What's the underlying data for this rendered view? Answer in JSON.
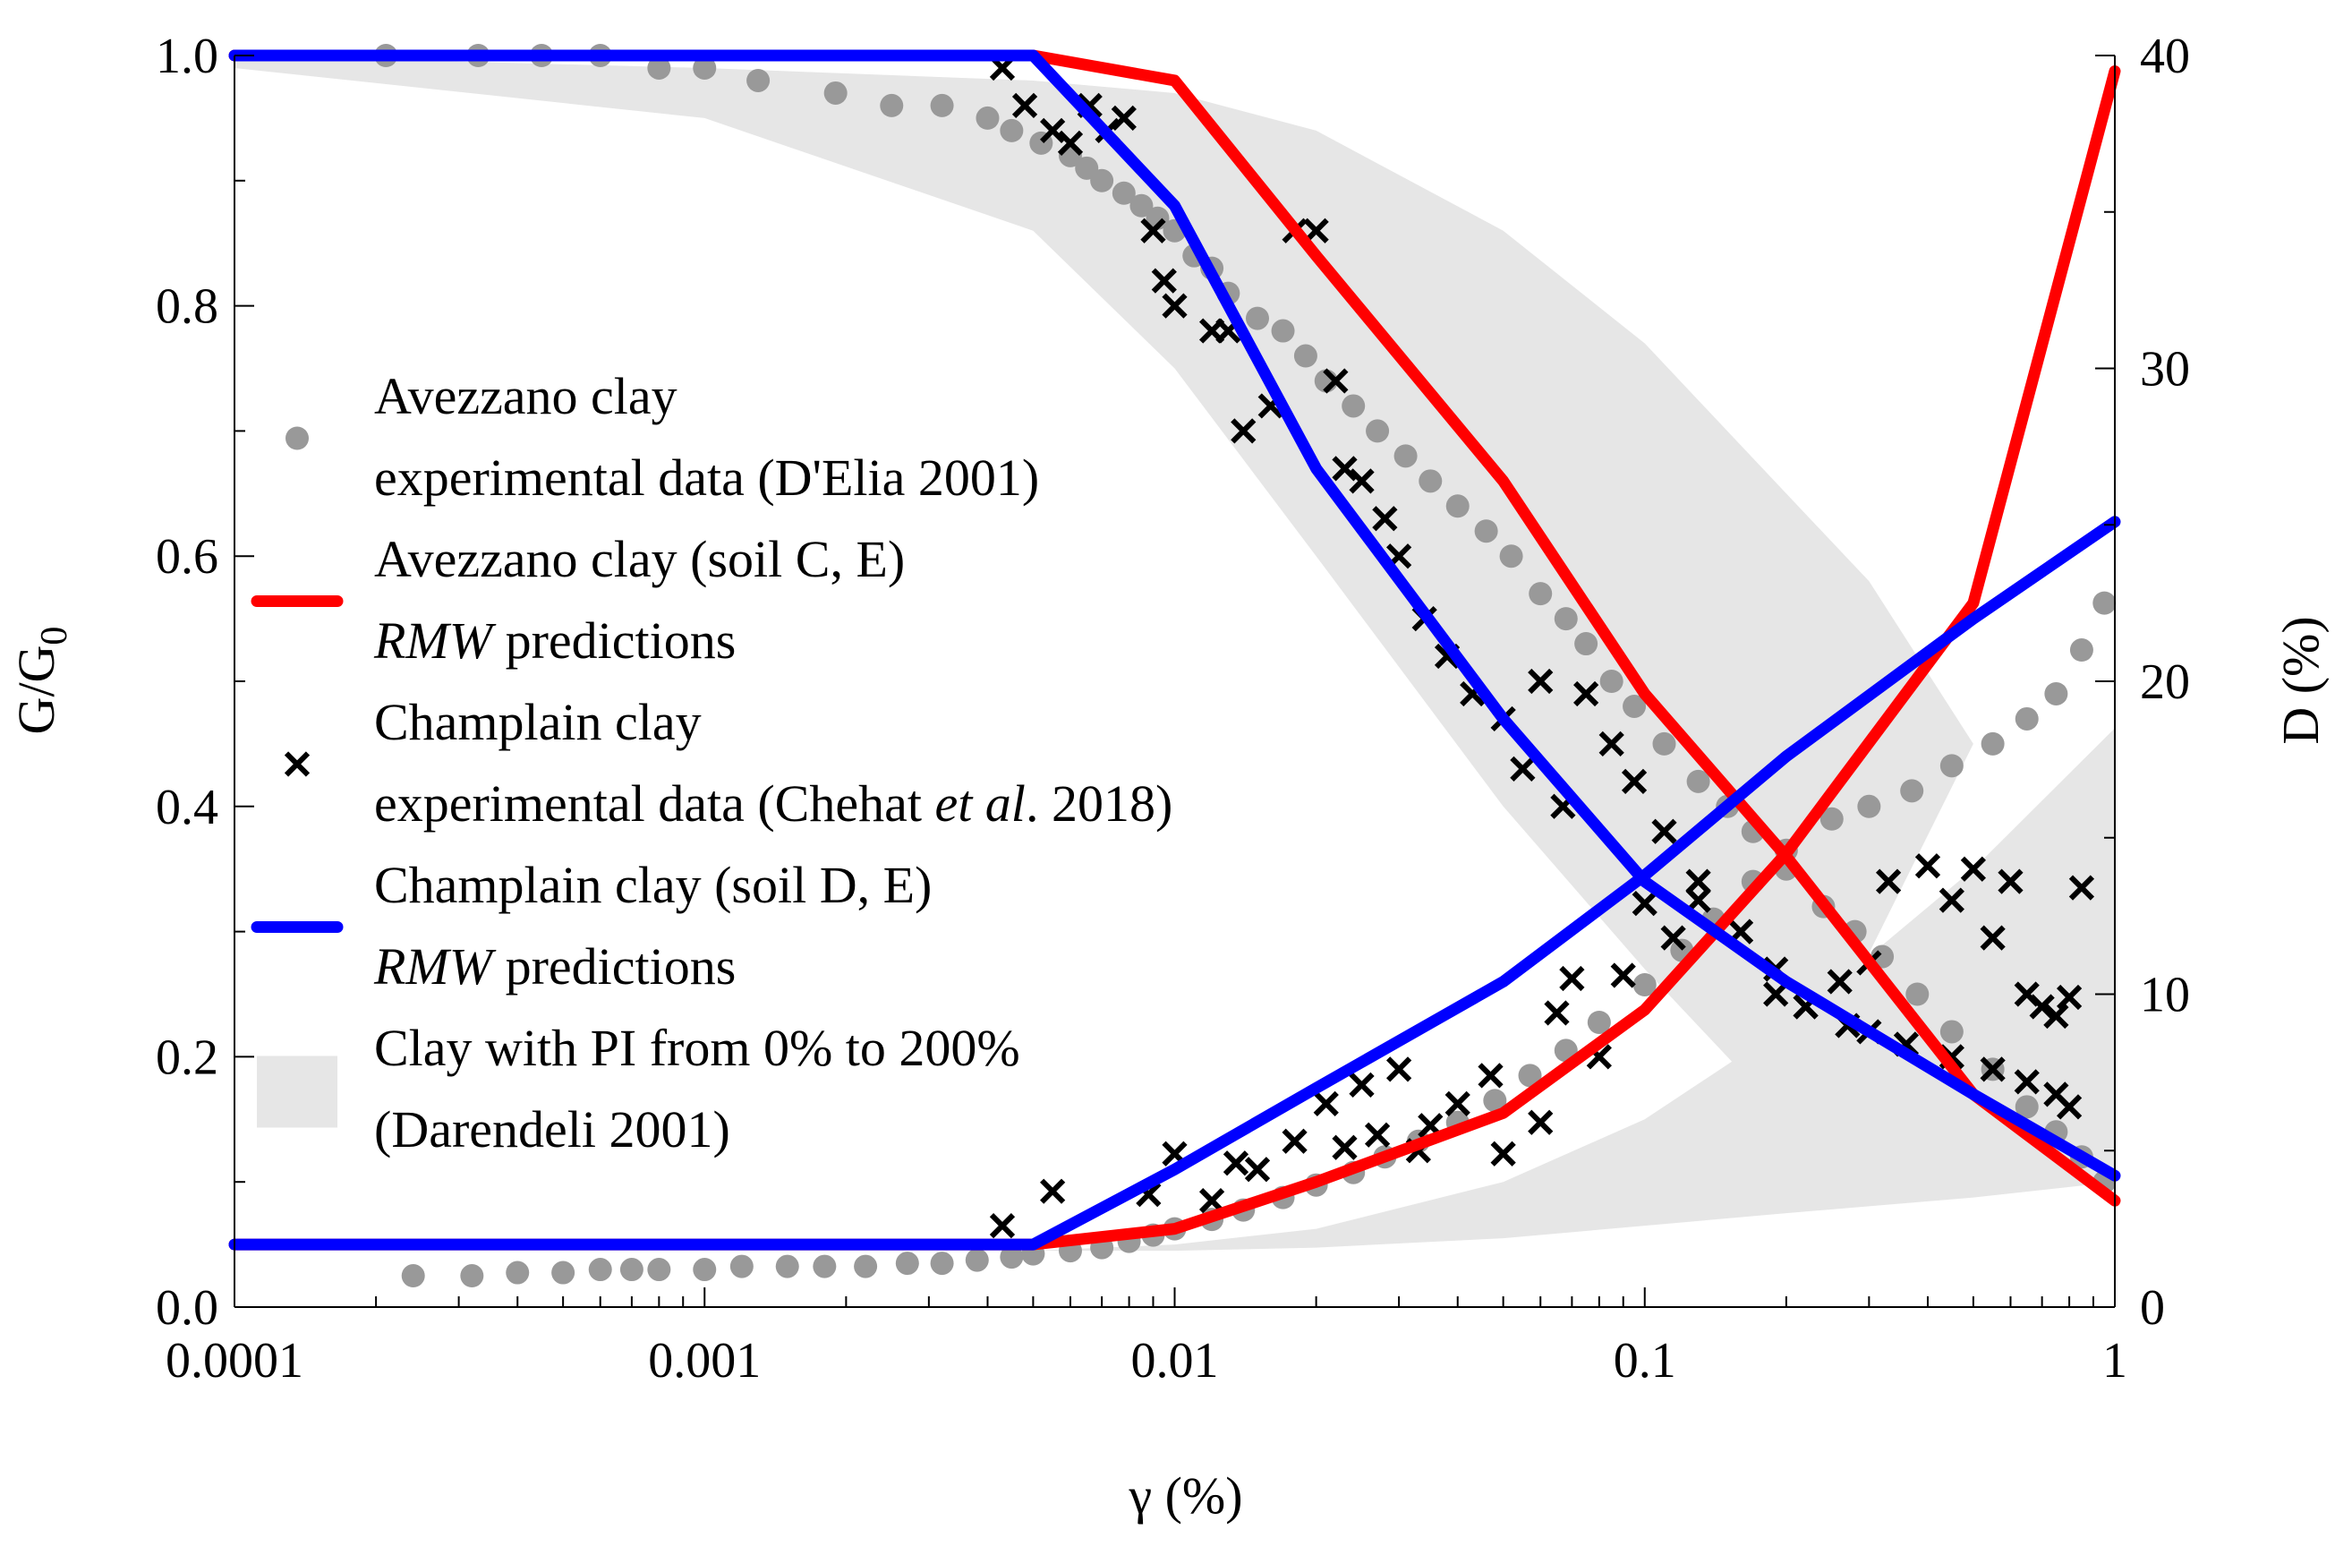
{
  "chart_data": {
    "type": "scatter",
    "xlabel": "γ (%)",
    "ylabel_left": "G/G",
    "ylabel_left_sub": "0",
    "ylabel_right": "D (%)",
    "x_scale": "log",
    "xlim": [
      0.0001,
      1
    ],
    "ylim_left": [
      0,
      1
    ],
    "ylim_right": [
      0,
      40
    ],
    "x_ticks": [
      {
        "value": 0.0001,
        "label": "0.0001"
      },
      {
        "value": 0.001,
        "label": "0.001"
      },
      {
        "value": 0.01,
        "label": "0.01"
      },
      {
        "value": 0.1,
        "label": "0.1"
      },
      {
        "value": 1,
        "label": "1"
      }
    ],
    "y_left_ticks": [
      {
        "value": 0,
        "label": "0.0"
      },
      {
        "value": 0.2,
        "label": "0.2"
      },
      {
        "value": 0.4,
        "label": "0.4"
      },
      {
        "value": 0.6,
        "label": "0.6"
      },
      {
        "value": 0.8,
        "label": "0.8"
      },
      {
        "value": 1.0,
        "label": "1.0"
      }
    ],
    "y_right_ticks": [
      {
        "value": 0,
        "label": "0"
      },
      {
        "value": 10,
        "label": "10"
      },
      {
        "value": 20,
        "label": "20"
      },
      {
        "value": 30,
        "label": "30"
      },
      {
        "value": 40,
        "label": "40"
      }
    ],
    "legend_placement": "left",
    "legend": [
      {
        "marker": "dot",
        "color": "#999999",
        "lines": [
          [
            "Avezzano clay"
          ],
          [
            "experimental data (D'Elia 2001)"
          ]
        ]
      },
      {
        "marker": "line",
        "color": "#ff0000",
        "lines": [
          [
            "Avezzano clay (soil C, E)"
          ],
          [
            "RMW",
            " predictions"
          ]
        ]
      },
      {
        "marker": "cross",
        "color": "#000000",
        "lines": [
          [
            "Champlain clay"
          ],
          [
            "experimental data (Chehat ",
            "et al",
            ". 2018)"
          ]
        ]
      },
      {
        "marker": "line",
        "color": "#0000ff",
        "lines": [
          [
            "Champlain clay (soil D, E)"
          ],
          [
            "RMW",
            " predictions"
          ]
        ]
      },
      {
        "marker": "band",
        "color": "#e6e6e6",
        "lines": [
          [
            "Clay with PI from 0% to 200%"
          ],
          [
            "(Darendeli 2001)"
          ]
        ]
      }
    ],
    "colors": {
      "avezzano": "#ff0000",
      "champlain": "#0000ff",
      "avezzano_data": "#999999",
      "champlain_data": "#000000",
      "band": "#e6e6e6"
    },
    "series": [
      {
        "name": "Avezzano clay (soil C, E) RMW predictions",
        "kind": "line",
        "axis": "left",
        "color": "#ff0000",
        "x": [
          0.0001,
          0.005,
          0.01,
          0.02,
          0.05,
          0.1,
          0.2,
          0.5,
          1.0
        ],
        "y": [
          1.0,
          1.0,
          0.98,
          0.84,
          0.66,
          0.49,
          0.36,
          0.17,
          0.085
        ]
      },
      {
        "name": "Avezzano clay (soil C, E) RMW predictions",
        "kind": "line",
        "axis": "right",
        "color": "#ff0000",
        "x": [
          0.0001,
          0.005,
          0.01,
          0.02,
          0.05,
          0.1,
          0.2,
          0.5,
          1.0
        ],
        "y": [
          2.0,
          2.0,
          2.5,
          4.0,
          6.2,
          9.5,
          14.5,
          22.5,
          39.5
        ]
      },
      {
        "name": "Champlain clay (soil D, E) RMW predictions",
        "kind": "line",
        "axis": "left",
        "color": "#0000ff",
        "x": [
          0.0001,
          0.005,
          0.01,
          0.02,
          0.05,
          0.1,
          0.2,
          0.5,
          1.0
        ],
        "y": [
          1.0,
          1.0,
          0.88,
          0.67,
          0.47,
          0.34,
          0.26,
          0.17,
          0.105
        ]
      },
      {
        "name": "Champlain clay (soil D, E) RMW predictions",
        "kind": "line",
        "axis": "right",
        "color": "#0000ff",
        "x": [
          0.0001,
          0.005,
          0.01,
          0.02,
          0.05,
          0.1,
          0.2,
          0.5,
          1.0
        ],
        "y": [
          2.0,
          2.0,
          4.4,
          7.0,
          10.4,
          13.8,
          17.6,
          22.0,
          25.1
        ]
      },
      {
        "name": "Avezzano clay experimental data (D'Elia 2001)",
        "kind": "scatter",
        "marker": "dot",
        "axis": "left",
        "color": "#999999",
        "x": [
          0.00021,
          0.00033,
          0.00045,
          0.0006,
          0.0008,
          0.001,
          0.0013,
          0.0019,
          0.0025,
          0.0032,
          0.004,
          0.0045,
          0.0052,
          0.006,
          0.0065,
          0.007,
          0.0078,
          0.0085,
          0.0092,
          0.01,
          0.011,
          0.012,
          0.013,
          0.015,
          0.017,
          0.019,
          0.021,
          0.024,
          0.027,
          0.031,
          0.035,
          0.04,
          0.046,
          0.052,
          0.06,
          0.068,
          0.075,
          0.085,
          0.095,
          0.11,
          0.13,
          0.15,
          0.17,
          0.2,
          0.24,
          0.28,
          0.32,
          0.38,
          0.45,
          0.55,
          0.65,
          0.75,
          0.85,
          0.95
        ],
        "y": [
          1.0,
          1.0,
          1.0,
          1.0,
          0.99,
          0.99,
          0.98,
          0.97,
          0.96,
          0.96,
          0.95,
          0.94,
          0.93,
          0.92,
          0.91,
          0.9,
          0.89,
          0.88,
          0.87,
          0.86,
          0.84,
          0.83,
          0.81,
          0.79,
          0.78,
          0.76,
          0.74,
          0.72,
          0.7,
          0.68,
          0.66,
          0.64,
          0.62,
          0.6,
          0.57,
          0.55,
          0.53,
          0.5,
          0.48,
          0.45,
          0.42,
          0.4,
          0.38,
          0.35,
          0.32,
          0.3,
          0.28,
          0.25,
          0.22,
          0.19,
          0.16,
          0.14,
          0.12,
          0.1
        ]
      },
      {
        "name": "Avezzano clay experimental data (D'Elia 2001)",
        "kind": "scatter",
        "marker": "dot",
        "axis": "right",
        "color": "#999999",
        "x": [
          0.00024,
          0.00032,
          0.0004,
          0.0005,
          0.0006,
          0.0007,
          0.0008,
          0.001,
          0.0012,
          0.0015,
          0.0018,
          0.0022,
          0.0027,
          0.0032,
          0.0038,
          0.0045,
          0.005,
          0.006,
          0.007,
          0.008,
          0.009,
          0.01,
          0.012,
          0.014,
          0.017,
          0.02,
          0.024,
          0.028,
          0.033,
          0.04,
          0.048,
          0.057,
          0.068,
          0.08,
          0.1,
          0.12,
          0.14,
          0.17,
          0.2,
          0.25,
          0.3,
          0.37,
          0.45,
          0.55,
          0.65,
          0.75,
          0.85,
          0.95
        ],
        "y": [
          1.0,
          1.0,
          1.1,
          1.1,
          1.2,
          1.2,
          1.2,
          1.2,
          1.3,
          1.3,
          1.3,
          1.3,
          1.4,
          1.4,
          1.5,
          1.6,
          1.7,
          1.8,
          1.9,
          2.1,
          2.3,
          2.5,
          2.8,
          3.1,
          3.5,
          3.9,
          4.3,
          4.8,
          5.3,
          5.9,
          6.6,
          7.4,
          8.2,
          9.1,
          10.3,
          11.4,
          12.4,
          13.6,
          14.6,
          15.6,
          16.0,
          16.5,
          17.3,
          18.0,
          18.8,
          19.6,
          21.0,
          22.5
        ]
      },
      {
        "name": "Champlain clay experimental data (Chehat et al. 2018)",
        "kind": "scatter",
        "marker": "cross",
        "axis": "left",
        "color": "#000000",
        "x": [
          0.0043,
          0.0048,
          0.0055,
          0.006,
          0.0066,
          0.0072,
          0.0078,
          0.009,
          0.0095,
          0.01,
          0.012,
          0.013,
          0.014,
          0.016,
          0.018,
          0.02,
          0.022,
          0.023,
          0.025,
          0.028,
          0.03,
          0.034,
          0.038,
          0.043,
          0.05,
          0.055,
          0.06,
          0.067,
          0.075,
          0.085,
          0.095,
          0.11,
          0.13,
          0.16,
          0.19,
          0.22,
          0.26,
          0.3,
          0.36,
          0.45,
          0.55,
          0.65,
          0.75,
          0.8
        ],
        "y": [
          0.99,
          0.96,
          0.94,
          0.93,
          0.96,
          0.94,
          0.95,
          0.86,
          0.82,
          0.8,
          0.78,
          0.78,
          0.7,
          0.72,
          0.86,
          0.86,
          0.74,
          0.67,
          0.66,
          0.63,
          0.6,
          0.55,
          0.52,
          0.49,
          0.47,
          0.43,
          0.5,
          0.4,
          0.49,
          0.45,
          0.42,
          0.38,
          0.34,
          0.3,
          0.27,
          0.24,
          0.26,
          0.22,
          0.21,
          0.2,
          0.19,
          0.18,
          0.17,
          0.16
        ]
      },
      {
        "name": "Champlain clay experimental data (Chehat et al. 2018)",
        "kind": "scatter",
        "marker": "cross",
        "axis": "right",
        "color": "#000000",
        "x": [
          0.0043,
          0.0055,
          0.0088,
          0.01,
          0.012,
          0.0135,
          0.015,
          0.018,
          0.021,
          0.023,
          0.025,
          0.027,
          0.03,
          0.033,
          0.035,
          0.04,
          0.047,
          0.05,
          0.06,
          0.065,
          0.07,
          0.08,
          0.09,
          0.1,
          0.115,
          0.13,
          0.16,
          0.19,
          0.22,
          0.27,
          0.3,
          0.33,
          0.4,
          0.45,
          0.5,
          0.55,
          0.6,
          0.65,
          0.7,
          0.75,
          0.8,
          0.85
        ],
        "y": [
          2.6,
          3.7,
          3.6,
          4.9,
          3.4,
          4.6,
          4.4,
          5.3,
          6.5,
          5.1,
          7.1,
          5.5,
          7.6,
          5.0,
          5.8,
          6.5,
          7.4,
          4.9,
          5.9,
          9.4,
          10.5,
          8.0,
          10.6,
          12.9,
          11.8,
          13.0,
          12.0,
          10.0,
          9.6,
          9.0,
          11.0,
          13.6,
          14.1,
          13.0,
          14.0,
          11.8,
          13.6,
          10.0,
          9.6,
          9.3,
          9.9,
          13.4
        ]
      }
    ],
    "band": {
      "name": "Clay with PI from 0% to 200% (Darendeli 2001)",
      "color": "#e6e6e6",
      "upper_G": {
        "x": [
          0.0001,
          0.001,
          0.005,
          0.01,
          0.02,
          0.05,
          0.1,
          0.2,
          0.3,
          0.5
        ],
        "y": [
          1.0,
          0.99,
          0.98,
          0.97,
          0.94,
          0.86,
          0.77,
          0.65,
          0.58,
          0.45
        ]
      },
      "lower_G": {
        "x": [
          0.0001,
          0.001,
          0.005,
          0.01,
          0.02,
          0.05,
          0.1,
          0.2
        ],
        "y": [
          0.99,
          0.95,
          0.86,
          0.75,
          0.6,
          0.4,
          0.27,
          0.15
        ]
      },
      "upper_D": {
        "x": [
          0.01,
          0.02,
          0.05,
          0.1,
          0.2,
          0.5,
          1.0
        ],
        "y": [
          2.0,
          2.5,
          4.0,
          6.0,
          9.0,
          14.0,
          18.5
        ]
      },
      "lower_D": {
        "x": [
          0.005,
          0.01,
          0.02,
          0.05,
          0.1,
          0.2,
          0.5,
          1.0
        ],
        "y": [
          1.8,
          1.8,
          1.9,
          2.2,
          2.6,
          3.0,
          3.5,
          4.0
        ]
      }
    }
  }
}
